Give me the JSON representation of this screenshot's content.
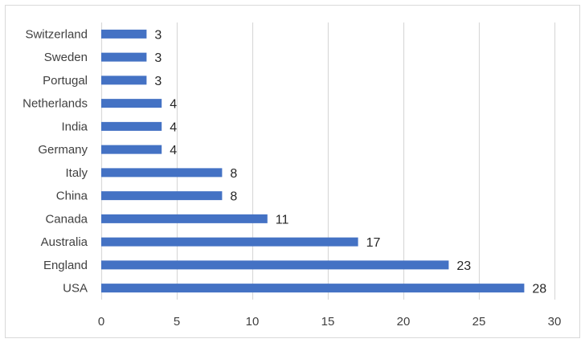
{
  "chart_data": {
    "type": "bar",
    "orientation": "horizontal",
    "categories": [
      "Switzerland",
      "Sweden",
      "Portugal",
      "Netherlands",
      "India",
      "Germany",
      "Italy",
      "China",
      "Canada",
      "Australia",
      "England",
      "USA"
    ],
    "values": [
      3,
      3,
      3,
      4,
      4,
      4,
      8,
      8,
      11,
      17,
      23,
      28
    ],
    "title": "",
    "xlabel": "",
    "ylabel": "",
    "xlim": [
      0,
      30
    ],
    "xticks": [
      0,
      5,
      10,
      15,
      20,
      25,
      30
    ],
    "grid": true,
    "data_labels": true,
    "legend": "none",
    "colors": {
      "bar": "#4472c4",
      "grid": "#d9d9d9",
      "border": "#d9d9d9",
      "text": "#404040",
      "label_text": "#262626"
    }
  }
}
